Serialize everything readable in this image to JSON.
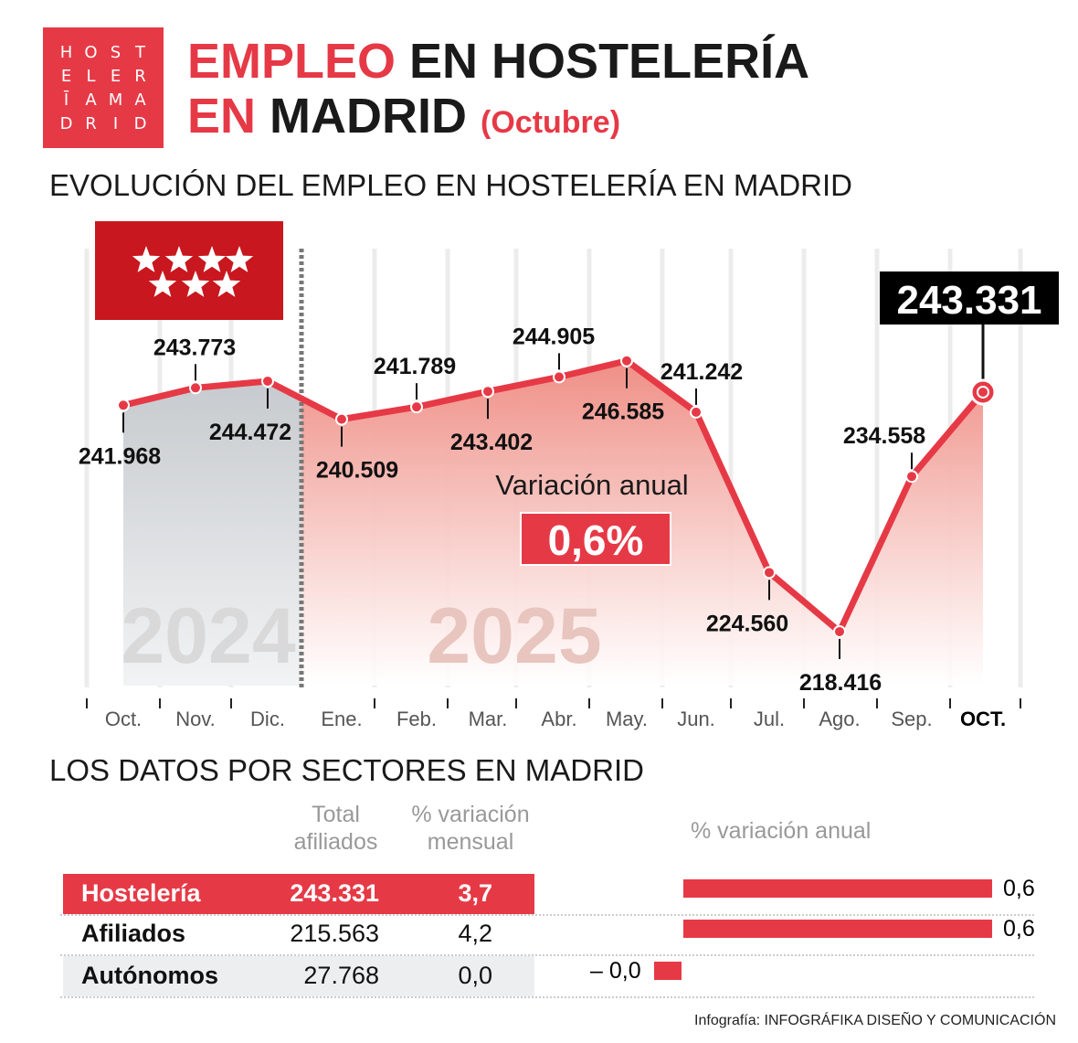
{
  "logo": {
    "letters": [
      "H",
      "O",
      "S",
      "T",
      "E",
      "L",
      "E",
      "R",
      "Ī",
      "A",
      "M",
      "A",
      "D",
      "R",
      "I",
      "D"
    ]
  },
  "header": {
    "title_red": "EMPLEO",
    "title_rest": " EN HOSTELERÍA",
    "title2_red": "EN",
    "title2_rest": " MADRID",
    "subtitle": "(Octubre)"
  },
  "section1_title": "EVOLUCIÓN DEL EMPLEO EN HOSTELERÍA EN MADRID",
  "chart_data": {
    "type": "line",
    "categories": [
      "Oct.",
      "Nov.",
      "Dic.",
      "Ene.",
      "Feb.",
      "Mar.",
      "Abr.",
      "May.",
      "Jun.",
      "Jul.",
      "Ago.",
      "Sep.",
      "OCT."
    ],
    "values": [
      241968,
      243773,
      244472,
      240509,
      241789,
      243402,
      244905,
      246585,
      241242,
      224560,
      218416,
      234558,
      243331
    ],
    "labels": [
      "241.968",
      "243.773",
      "244.472",
      "240.509",
      "241.789",
      "243.402",
      "244.905",
      "246.585",
      "241.242",
      "224.560",
      "218.416",
      "234.558",
      "243.331"
    ],
    "year_labels": [
      "2024",
      "2025"
    ],
    "ylim": [
      212800,
      261300
    ],
    "annotation": {
      "label": "Variación anual",
      "value": "0,6%"
    },
    "colors": {
      "line": "#e63946",
      "area_2025": "#f4a99f",
      "area_2024": "#c9cdd1",
      "highlight_box": "#000000"
    }
  },
  "section2_title": "LOS DATOS POR SECTORES EN MADRID",
  "table": {
    "headers": {
      "total": "Total afiliados",
      "mensual": "% variación mensual",
      "anual": "% variación anual"
    },
    "rows": [
      {
        "name": "Hostelería",
        "total": "243.331",
        "mensual": "3,7",
        "anual": "0,6",
        "anual_value": 0.6
      },
      {
        "name": "Afiliados",
        "total": "215.563",
        "mensual": "4,2",
        "anual": "0,6",
        "anual_value": 0.6
      },
      {
        "name": "Autónomos",
        "total": "27.768",
        "mensual": "0,0",
        "anual": "– 0,0",
        "anual_value": -0.0
      }
    ]
  },
  "credit": "Infografía: INFOGRÁFIKA DISEÑO Y COMUNICACIÓN"
}
